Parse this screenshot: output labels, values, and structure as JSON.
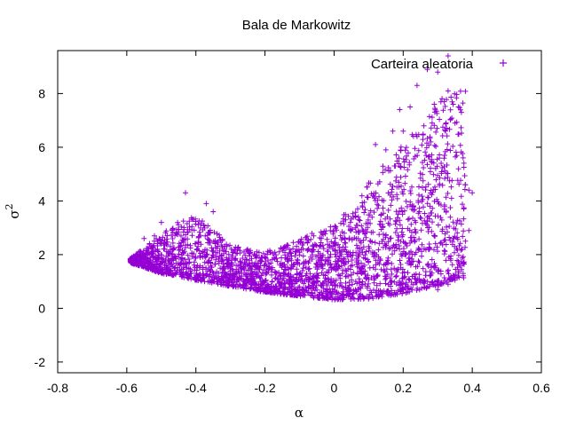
{
  "chart_data": {
    "type": "scatter",
    "title": "Bala de Markowitz",
    "xlabel": "α",
    "ylabel": "σ",
    "ylabel_superscript": "2",
    "xlim": [
      -0.8,
      0.6
    ],
    "ylim": [
      -2.4,
      9.6
    ],
    "xticks": [
      "-0.8",
      "-0.6",
      "-0.4",
      "-0.2",
      "0",
      "0.2",
      "0.4",
      "0.6"
    ],
    "xtick_values": [
      -0.8,
      -0.6,
      -0.4,
      -0.2,
      0,
      0.2,
      0.4,
      0.6
    ],
    "yticks": [
      "-2",
      "0",
      "2",
      "4",
      "6",
      "8"
    ],
    "ytick_values": [
      -2,
      0,
      2,
      4,
      6,
      8
    ],
    "grid": false,
    "legend_position": "top-right",
    "marker": "plus",
    "color": "#9400d3",
    "series": [
      {
        "name": "Carteira aleatoria",
        "frontier": [
          [
            -0.59,
            1.7
          ],
          [
            -0.5,
            1.3
          ],
          [
            -0.4,
            1.05
          ],
          [
            -0.3,
            0.82
          ],
          [
            -0.2,
            0.6
          ],
          [
            -0.1,
            0.45
          ],
          [
            0.0,
            0.32
          ],
          [
            0.1,
            0.35
          ],
          [
            0.2,
            0.55
          ],
          [
            0.3,
            0.85
          ],
          [
            0.35,
            1.1
          ]
        ],
        "upper_envelope": [
          [
            -0.59,
            1.9
          ],
          [
            -0.5,
            3.0
          ],
          [
            -0.45,
            3.6
          ],
          [
            -0.4,
            3.9
          ],
          [
            -0.35,
            3.3
          ],
          [
            -0.3,
            2.6
          ],
          [
            -0.2,
            2.4
          ],
          [
            -0.15,
            2.6
          ],
          [
            -0.1,
            3.0
          ],
          [
            0.0,
            3.6
          ],
          [
            0.05,
            4.5
          ],
          [
            0.1,
            5.5
          ],
          [
            0.15,
            6.3
          ],
          [
            0.2,
            7.2
          ],
          [
            0.25,
            7.8
          ],
          [
            0.3,
            8.8
          ],
          [
            0.33,
            9.4
          ]
        ],
        "outliers": [
          [
            0.33,
            9.4
          ],
          [
            0.3,
            8.8
          ],
          [
            0.27,
            8.9
          ],
          [
            0.24,
            8.3
          ],
          [
            0.22,
            7.5
          ],
          [
            0.19,
            7.4
          ],
          [
            0.26,
            6.8
          ],
          [
            0.33,
            8.1
          ],
          [
            0.36,
            7.5
          ],
          [
            0.29,
            7.6
          ],
          [
            0.2,
            6.6
          ],
          [
            0.17,
            6.6
          ],
          [
            0.24,
            6.4
          ],
          [
            0.28,
            6.2
          ],
          [
            0.35,
            6.9
          ],
          [
            0.38,
            4.6
          ],
          [
            0.39,
            4.4
          ],
          [
            0.4,
            4.3
          ],
          [
            0.39,
            2.9
          ],
          [
            0.38,
            2.5
          ],
          [
            0.37,
            2.2
          ],
          [
            0.36,
            1.2
          ],
          [
            0.35,
            1.05
          ],
          [
            0.33,
            0.9
          ],
          [
            0.3,
            0.7
          ],
          [
            -0.43,
            4.3
          ],
          [
            -0.37,
            3.9
          ],
          [
            -0.35,
            3.6
          ],
          [
            -0.52,
            2.7
          ],
          [
            -0.55,
            2.6
          ],
          [
            -0.57,
            2.0
          ],
          [
            -0.59,
            1.8
          ],
          [
            -0.58,
            1.65
          ],
          [
            -0.54,
            1.5
          ],
          [
            -0.5,
            3.2
          ],
          [
            0.12,
            6.1
          ],
          [
            0.15,
            5.9
          ],
          [
            0.32,
            5.7
          ],
          [
            0.31,
            5.4
          ],
          [
            0.34,
            4.1
          ]
        ]
      }
    ]
  }
}
